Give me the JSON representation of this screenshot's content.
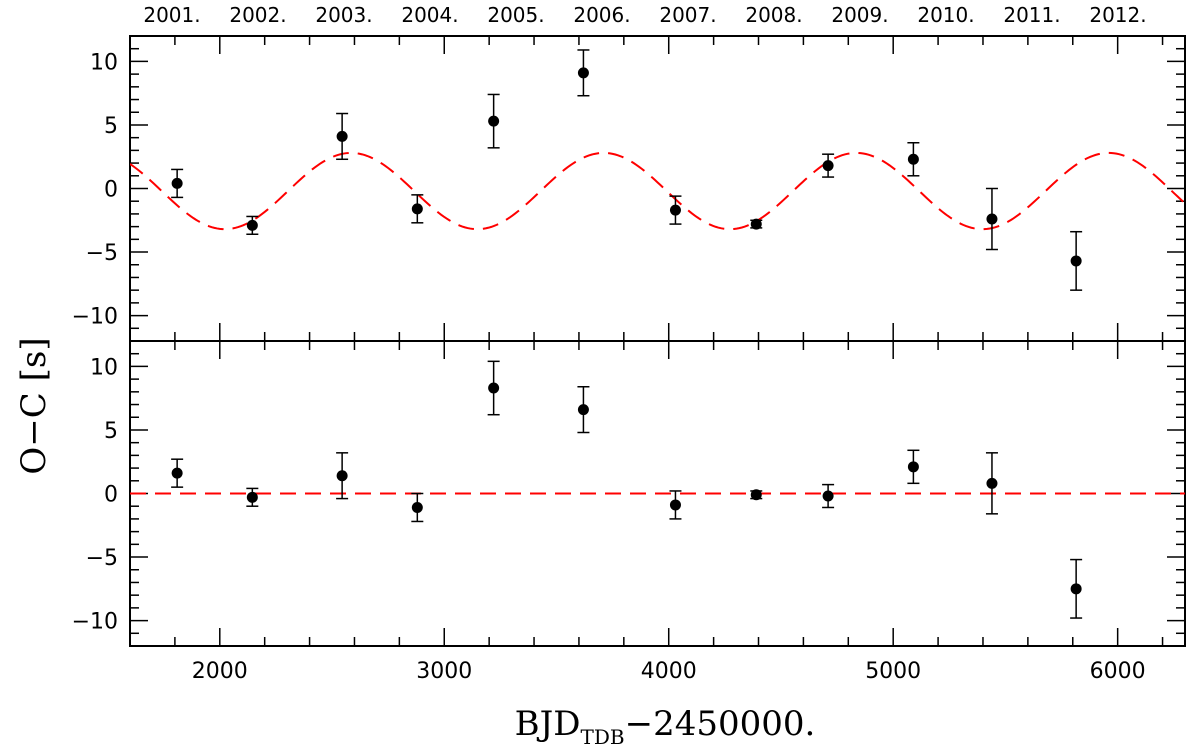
{
  "chart_data": [
    {
      "type": "scatter",
      "panel": "top",
      "xlabel": "",
      "ylabel": "O−C [s]",
      "xlim": [
        1600,
        6300
      ],
      "ylim": [
        -12,
        12
      ],
      "xticks_labeled": [],
      "yticks": [
        -10,
        -5,
        0,
        5,
        10
      ],
      "top_axis_labels": [
        "2001.",
        "2002.",
        "2003.",
        "2004.",
        "2005.",
        "2006.",
        "2007.",
        "2008.",
        "2009.",
        "2010.",
        "2011.",
        "2012."
      ],
      "points": [
        {
          "x": 1810,
          "y": 0.4,
          "err": 1.1
        },
        {
          "x": 2145,
          "y": -2.9,
          "err": 0.7
        },
        {
          "x": 2545,
          "y": 4.1,
          "err": 1.8
        },
        {
          "x": 2880,
          "y": -1.6,
          "err": 1.1
        },
        {
          "x": 3220,
          "y": 5.3,
          "err": 2.1
        },
        {
          "x": 3620,
          "y": 9.1,
          "err": 1.8
        },
        {
          "x": 4030,
          "y": -1.7,
          "err": 1.1
        },
        {
          "x": 4390,
          "y": -2.8,
          "err": 0.3
        },
        {
          "x": 4710,
          "y": 1.8,
          "err": 0.9
        },
        {
          "x": 5090,
          "y": 2.3,
          "err": 1.3
        },
        {
          "x": 5440,
          "y": -2.4,
          "err": 2.4
        },
        {
          "x": 5815,
          "y": -5.7,
          "err": 2.3
        }
      ],
      "model": {
        "style": "dashed",
        "color": "#ff0000",
        "form": "sinusoid",
        "amplitude": 3.0,
        "offset": -0.2,
        "period": 1125,
        "peak_at": 2585
      }
    },
    {
      "type": "scatter",
      "panel": "bottom",
      "xlabel": "BJD_TDB−2450000.",
      "ylabel": "O−C [s]",
      "xlim": [
        1600,
        6300
      ],
      "ylim": [
        -12,
        12
      ],
      "xticks_labeled": [
        2000,
        3000,
        4000,
        5000,
        6000
      ],
      "yticks": [
        -10,
        -5,
        0,
        5,
        10
      ],
      "points": [
        {
          "x": 1810,
          "y": 1.6,
          "err": 1.1
        },
        {
          "x": 2145,
          "y": -0.3,
          "err": 0.7
        },
        {
          "x": 2545,
          "y": 1.4,
          "err": 1.8
        },
        {
          "x": 2880,
          "y": -1.1,
          "err": 1.1
        },
        {
          "x": 3220,
          "y": 8.3,
          "err": 2.1
        },
        {
          "x": 3620,
          "y": 6.6,
          "err": 1.8
        },
        {
          "x": 4030,
          "y": -0.9,
          "err": 1.1
        },
        {
          "x": 4390,
          "y": -0.1,
          "err": 0.3
        },
        {
          "x": 4710,
          "y": -0.2,
          "err": 0.9
        },
        {
          "x": 5090,
          "y": 2.1,
          "err": 1.3
        },
        {
          "x": 5440,
          "y": 0.8,
          "err": 2.4
        },
        {
          "x": 5815,
          "y": -7.5,
          "err": 2.3
        }
      ],
      "model": {
        "style": "dashed",
        "color": "#ff0000",
        "form": "constant",
        "value": 0
      }
    }
  ],
  "labels": {
    "y_title": "O−C  [s]",
    "x_title_main": "BJD",
    "x_title_sub": "TDB",
    "x_title_tail": "−2450000."
  },
  "colors": {
    "points": "#000000",
    "model": "#ff0000",
    "axes": "#000000"
  }
}
